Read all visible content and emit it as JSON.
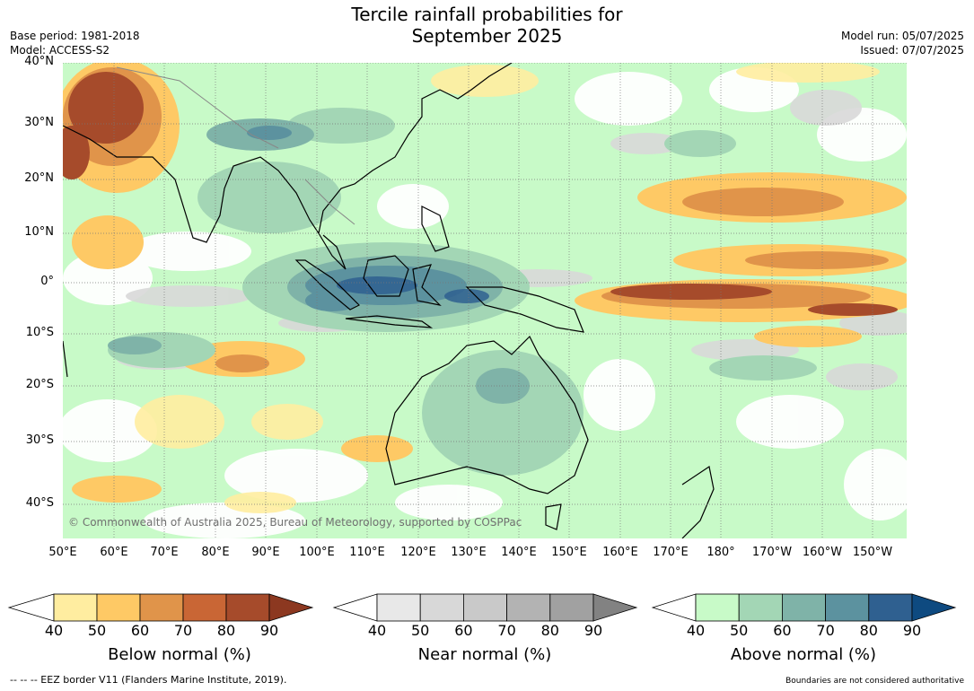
{
  "title_line1": "Tercile rainfall probabilities for",
  "title_line2": "September 2025",
  "meta_left": [
    "Base period: 1981-2018",
    "Model: ACCESS-S2"
  ],
  "meta_right": [
    "Model run: 05/07/2025",
    "Issued: 07/07/2025"
  ],
  "lat_labels": [
    "40°N",
    "30°N",
    "20°N",
    "10°N",
    "0°",
    "10°S",
    "20°S",
    "30°S",
    "40°S"
  ],
  "lon_labels": [
    "50°E",
    "60°E",
    "70°E",
    "80°E",
    "90°E",
    "100°E",
    "110°E",
    "120°E",
    "130°E",
    "140°E",
    "150°E",
    "160°E",
    "170°E",
    "180°",
    "170°W",
    "160°W",
    "150°W"
  ],
  "copyright": "© Commonwealth of Australia 2025, Bureau of Meteorology, supported by COSPPac",
  "colorbars": [
    {
      "name": "below",
      "title": "Below normal (%)",
      "ticks": [
        "40",
        "50",
        "60",
        "70",
        "80",
        "90"
      ],
      "colors": [
        "#ffffff",
        "#ffeda0",
        "#fec965",
        "#e0944a",
        "#c96635",
        "#a64b2b",
        "#8c3820"
      ]
    },
    {
      "name": "near",
      "title": "Near normal (%)",
      "ticks": [
        "40",
        "50",
        "60",
        "70",
        "80",
        "90"
      ],
      "colors": [
        "#ffffff",
        "#e8e8e8",
        "#d8d8d8",
        "#c9c9c9",
        "#b3b3b3",
        "#a1a1a1",
        "#828282"
      ]
    },
    {
      "name": "above",
      "title": "Above normal (%)",
      "ticks": [
        "40",
        "50",
        "60",
        "70",
        "80",
        "90"
      ],
      "colors": [
        "#ffffff",
        "#c8fac8",
        "#a3d6b5",
        "#7fb3a8",
        "#5c929f",
        "#2f6090",
        "#0e4a80"
      ]
    }
  ],
  "footer_left": "--  --  -- EEZ border V11 (Flanders Marine Institute, 2019).",
  "footer_right": "Boundaries are not considered authoritative"
}
